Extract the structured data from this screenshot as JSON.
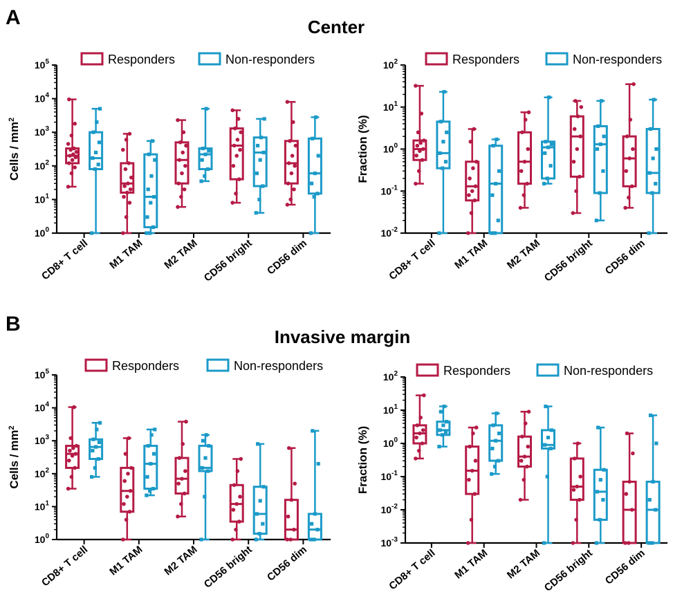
{
  "colors": {
    "responders": "#b51a45",
    "non_responders": "#1b9ac8"
  },
  "panels": [
    {
      "letter": "A",
      "title": "Center"
    },
    {
      "letter": "B",
      "title": "Invasive margin"
    }
  ],
  "chart_data": [
    {
      "type": "box",
      "panel": "A",
      "ylabel": "Cells / mm2",
      "yscale": "log",
      "ylim": [
        1,
        100000
      ],
      "yticks": [
        1,
        10,
        100,
        1000,
        10000,
        100000
      ],
      "categories": [
        "CD8+ T cell",
        "M1 TAM",
        "M2 TAM",
        "CD56 bright",
        "CD56 dim"
      ],
      "legend": [
        "Responders",
        "Non-responders"
      ],
      "series": [
        {
          "name": "Responders",
          "boxes": [
            {
              "min": 24,
              "q1": 120,
              "median": 200,
              "q3": 330,
              "max": 9500,
              "points": [
                24,
                60,
                90,
                120,
                150,
                180,
                200,
                220,
                260,
                300,
                330,
                450,
                800,
                1800,
                9500
              ]
            },
            {
              "min": 1,
              "q1": 16,
              "median": 30,
              "q3": 120,
              "max": 900,
              "points": [
                1,
                3,
                8,
                12,
                16,
                20,
                25,
                30,
                45,
                80,
                120,
                300,
                600,
                900
              ]
            },
            {
              "min": 6,
              "q1": 30,
              "median": 150,
              "q3": 500,
              "max": 2300,
              "points": [
                6,
                12,
                20,
                30,
                60,
                100,
                150,
                250,
                400,
                500,
                1000,
                2300
              ]
            },
            {
              "min": 8,
              "q1": 40,
              "median": 400,
              "q3": 1300,
              "max": 4500,
              "points": [
                8,
                15,
                40,
                100,
                200,
                300,
                400,
                600,
                1000,
                1300,
                2500,
                4500
              ]
            },
            {
              "min": 7,
              "q1": 30,
              "median": 120,
              "q3": 550,
              "max": 8000,
              "points": [
                7,
                10,
                20,
                30,
                60,
                100,
                120,
                200,
                400,
                550,
                2000,
                8000
              ]
            }
          ]
        },
        {
          "name": "Non-responders",
          "boxes": [
            {
              "min": 1,
              "q1": 80,
              "median": 170,
              "q3": 1000,
              "max": 5000,
              "points": [
                1,
                80,
                110,
                170,
                250,
                500,
                1000,
                2000,
                5000
              ]
            },
            {
              "min": 1,
              "q1": 1.5,
              "median": 12,
              "q3": 220,
              "max": 550,
              "points": [
                1,
                1,
                1.5,
                3,
                8,
                12,
                20,
                50,
                150,
                220,
                550
              ]
            },
            {
              "min": 35,
              "q1": 80,
              "median": 220,
              "q3": 330,
              "max": 5000,
              "points": [
                35,
                50,
                80,
                150,
                220,
                280,
                330,
                5000
              ]
            },
            {
              "min": 4,
              "q1": 25,
              "median": 250,
              "q3": 700,
              "max": 2500,
              "points": [
                4,
                10,
                25,
                60,
                150,
                250,
                400,
                700,
                2500
              ]
            },
            {
              "min": 1,
              "q1": 15,
              "median": 60,
              "q3": 650,
              "max": 2800,
              "points": [
                1,
                12,
                15,
                30,
                60,
                200,
                650,
                2800
              ]
            }
          ]
        }
      ]
    },
    {
      "type": "box",
      "panel": "A",
      "ylabel": "Fraction (%)",
      "yscale": "log",
      "ylim": [
        0.01,
        100
      ],
      "yticks": [
        0.01,
        0.1,
        1,
        10,
        100
      ],
      "categories": [
        "CD8+ T cell",
        "M1 TAM",
        "M2 TAM",
        "CD56 bright",
        "CD56 dim"
      ],
      "legend": [
        "Responders",
        "Non-responders"
      ],
      "series": [
        {
          "name": "Responders",
          "boxes": [
            {
              "min": 0.15,
              "q1": 0.55,
              "median": 1.0,
              "q3": 1.6,
              "max": 32,
              "points": [
                0.15,
                0.3,
                0.55,
                0.7,
                0.9,
                1.0,
                1.2,
                1.4,
                1.6,
                2.5,
                7,
                32
              ]
            },
            {
              "min": 0.01,
              "q1": 0.06,
              "median": 0.13,
              "q3": 0.5,
              "max": 3,
              "points": [
                0.01,
                0.03,
                0.06,
                0.08,
                0.1,
                0.13,
                0.2,
                0.35,
                0.5,
                1.5,
                3
              ]
            },
            {
              "min": 0.04,
              "q1": 0.15,
              "median": 0.5,
              "q3": 2.5,
              "max": 7.5,
              "points": [
                0.04,
                0.08,
                0.15,
                0.3,
                0.5,
                1,
                2.5,
                5,
                7.5
              ]
            },
            {
              "min": 0.03,
              "q1": 0.22,
              "median": 2.0,
              "q3": 6,
              "max": 14,
              "points": [
                0.03,
                0.1,
                0.22,
                0.5,
                1,
                2,
                3,
                6,
                10,
                14
              ]
            },
            {
              "min": 0.04,
              "q1": 0.13,
              "median": 0.6,
              "q3": 2,
              "max": 35,
              "points": [
                0.04,
                0.07,
                0.13,
                0.3,
                0.6,
                1,
                2,
                5,
                35
              ]
            }
          ]
        },
        {
          "name": "Non-responders",
          "boxes": [
            {
              "min": 0.01,
              "q1": 0.35,
              "median": 0.8,
              "q3": 4.5,
              "max": 23,
              "points": [
                0.01,
                0.35,
                0.5,
                0.8,
                1.5,
                2.5,
                4.5,
                23
              ]
            },
            {
              "min": 0.01,
              "q1": 0.01,
              "median": 0.15,
              "q3": 1.2,
              "max": 1.7,
              "points": [
                0.01,
                0.01,
                0.02,
                0.08,
                0.15,
                0.3,
                1.2,
                1.7
              ]
            },
            {
              "min": 0.15,
              "q1": 0.2,
              "median": 1.1,
              "q3": 1.5,
              "max": 17,
              "points": [
                0.15,
                0.2,
                0.4,
                0.8,
                1.1,
                1.3,
                1.5,
                17
              ]
            },
            {
              "min": 0.02,
              "q1": 0.09,
              "median": 1.3,
              "q3": 3.5,
              "max": 14,
              "points": [
                0.02,
                0.09,
                0.3,
                1,
                1.3,
                2,
                3.5,
                14
              ]
            },
            {
              "min": 0.01,
              "q1": 0.09,
              "median": 0.27,
              "q3": 3,
              "max": 15,
              "points": [
                0.01,
                0.09,
                0.15,
                0.27,
                0.6,
                1,
                3,
                15
              ]
            }
          ]
        }
      ]
    },
    {
      "type": "box",
      "panel": "B",
      "ylabel": "Cells / mm2",
      "yscale": "log",
      "ylim": [
        1,
        100000
      ],
      "yticks": [
        1,
        10,
        100,
        1000,
        10000,
        100000
      ],
      "categories": [
        "CD8+ T cell",
        "M1 TAM",
        "M2 TAM",
        "CD56 bright",
        "CD56 dim"
      ],
      "legend": [
        "Responders",
        "Non-responders"
      ],
      "series": [
        {
          "name": "Responders",
          "boxes": [
            {
              "min": 35,
              "q1": 150,
              "median": 400,
              "q3": 700,
              "max": 10500,
              "points": [
                35,
                80,
                150,
                250,
                350,
                400,
                500,
                600,
                700,
                1200,
                10500
              ]
            },
            {
              "min": 1,
              "q1": 7,
              "median": 30,
              "q3": 150,
              "max": 1200,
              "points": [
                1,
                4,
                7,
                12,
                20,
                30,
                60,
                100,
                150,
                400,
                1200
              ]
            },
            {
              "min": 5,
              "q1": 25,
              "median": 70,
              "q3": 300,
              "max": 3800,
              "points": [
                5,
                12,
                25,
                50,
                70,
                120,
                300,
                800,
                3800
              ]
            },
            {
              "min": 1,
              "q1": 3.5,
              "median": 12,
              "q3": 45,
              "max": 280,
              "points": [
                1,
                2,
                3.5,
                8,
                12,
                20,
                45,
                120,
                280
              ]
            },
            {
              "min": 1,
              "q1": 1,
              "median": 2,
              "q3": 16,
              "max": 600,
              "points": [
                1,
                1,
                2,
                5,
                16,
                50,
                600
              ]
            }
          ]
        },
        {
          "name": "Non-responders",
          "boxes": [
            {
              "min": 80,
              "q1": 280,
              "median": 650,
              "q3": 1100,
              "max": 3500,
              "points": [
                80,
                150,
                280,
                500,
                650,
                900,
                1100,
                2200,
                3500
              ]
            },
            {
              "min": 22,
              "q1": 35,
              "median": 200,
              "q3": 700,
              "max": 2200,
              "points": [
                22,
                30,
                35,
                80,
                200,
                400,
                700,
                1500,
                2200
              ]
            },
            {
              "min": 1,
              "q1": 120,
              "median": 150,
              "q3": 700,
              "max": 1500,
              "points": [
                1,
                20,
                120,
                150,
                300,
                700,
                1000,
                1500
              ]
            },
            {
              "min": 1,
              "q1": 1.5,
              "median": 6,
              "q3": 40,
              "max": 800,
              "points": [
                1,
                1.5,
                3,
                6,
                15,
                40,
                800
              ]
            },
            {
              "min": 1,
              "q1": 1,
              "median": 2,
              "q3": 6,
              "max": 2000,
              "points": [
                1,
                1,
                2,
                3,
                6,
                200,
                2000
              ]
            }
          ]
        }
      ]
    },
    {
      "type": "box",
      "panel": "B",
      "ylabel": "Fraction (%)",
      "yscale": "log",
      "ylim": [
        0.001,
        100
      ],
      "yticks": [
        0.001,
        0.01,
        0.1,
        1,
        10,
        100
      ],
      "categories": [
        "CD8+ T cell",
        "M1 TAM",
        "M2 TAM",
        "CD56 bright",
        "CD56 dim"
      ],
      "legend": [
        "Responders",
        "Non-responders"
      ],
      "series": [
        {
          "name": "Responders",
          "boxes": [
            {
              "min": 0.35,
              "q1": 1.0,
              "median": 2.0,
              "q3": 3.5,
              "max": 28,
              "points": [
                0.35,
                0.6,
                1,
                1.5,
                2,
                2.5,
                3.5,
                6,
                28
              ]
            },
            {
              "min": 0.001,
              "q1": 0.03,
              "median": 0.15,
              "q3": 0.8,
              "max": 3,
              "points": [
                0.001,
                0.005,
                0.03,
                0.08,
                0.15,
                0.3,
                0.8,
                2,
                3
              ]
            },
            {
              "min": 0.02,
              "q1": 0.2,
              "median": 0.4,
              "q3": 1.6,
              "max": 9,
              "points": [
                0.02,
                0.08,
                0.2,
                0.3,
                0.4,
                0.8,
                1.6,
                4,
                9
              ]
            },
            {
              "min": 0.001,
              "q1": 0.02,
              "median": 0.05,
              "q3": 0.35,
              "max": 1,
              "points": [
                0.001,
                0.005,
                0.02,
                0.04,
                0.05,
                0.1,
                0.35,
                1
              ]
            },
            {
              "min": 0.001,
              "q1": 0.001,
              "median": 0.01,
              "q3": 0.07,
              "max": 2,
              "points": [
                0.001,
                0.001,
                0.01,
                0.03,
                0.07,
                0.5,
                2
              ]
            }
          ]
        },
        {
          "name": "Non-responders",
          "boxes": [
            {
              "min": 0.8,
              "q1": 1.8,
              "median": 2.5,
              "q3": 4.5,
              "max": 13,
              "points": [
                0.8,
                1.8,
                2.2,
                2.5,
                3.5,
                4.5,
                9,
                13
              ]
            },
            {
              "min": 0.12,
              "q1": 0.3,
              "median": 1.2,
              "q3": 3.5,
              "max": 8,
              "points": [
                0.12,
                0.2,
                0.3,
                0.7,
                1.2,
                2,
                3.5,
                8
              ]
            },
            {
              "min": 0.001,
              "q1": 0.7,
              "median": 0.9,
              "q3": 2.5,
              "max": 13,
              "points": [
                0.001,
                0.1,
                0.7,
                0.9,
                1.5,
                2.5,
                13
              ]
            },
            {
              "min": 0.001,
              "q1": 0.005,
              "median": 0.035,
              "q3": 0.16,
              "max": 3,
              "points": [
                0.001,
                0.005,
                0.02,
                0.035,
                0.08,
                0.16,
                3
              ]
            },
            {
              "min": 0.001,
              "q1": 0.001,
              "median": 0.01,
              "q3": 0.07,
              "max": 7,
              "points": [
                0.001,
                0.001,
                0.01,
                0.02,
                0.07,
                1,
                7
              ]
            }
          ]
        }
      ]
    }
  ]
}
